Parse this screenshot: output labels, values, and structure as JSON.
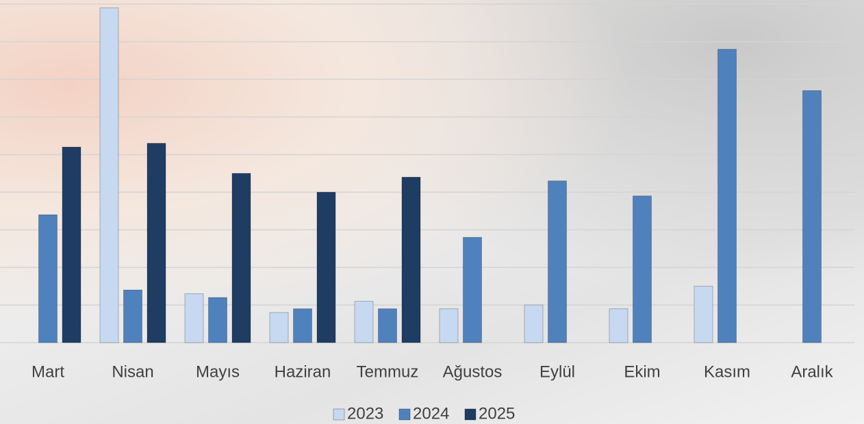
{
  "chart_data": {
    "type": "bar",
    "categories": [
      "Mart",
      "Nisan",
      "Mayıs",
      "Haziran",
      "Temmuz",
      "Ağustos",
      "Eylül",
      "Ekim",
      "Kasım",
      "Aralık"
    ],
    "series": [
      {
        "name": "2023",
        "color": "#c6d9f1",
        "values": [
          null,
          8.9,
          1.3,
          0.8,
          1.1,
          0.9,
          1.0,
          0.9,
          1.5,
          null
        ]
      },
      {
        "name": "2024",
        "color": "#4f81bd",
        "values": [
          3.4,
          1.4,
          1.2,
          0.9,
          0.9,
          2.8,
          4.3,
          3.9,
          7.8,
          6.7
        ]
      },
      {
        "name": "2025",
        "color": "#1f3d63",
        "values": [
          5.2,
          5.3,
          4.5,
          4.0,
          4.4,
          null,
          null,
          null,
          null,
          null
        ]
      }
    ],
    "ylim": [
      0,
      9
    ],
    "yticks": [
      0,
      1,
      2,
      3,
      4,
      5,
      6,
      7,
      8,
      9
    ],
    "grid": true,
    "legend": "bottom"
  }
}
